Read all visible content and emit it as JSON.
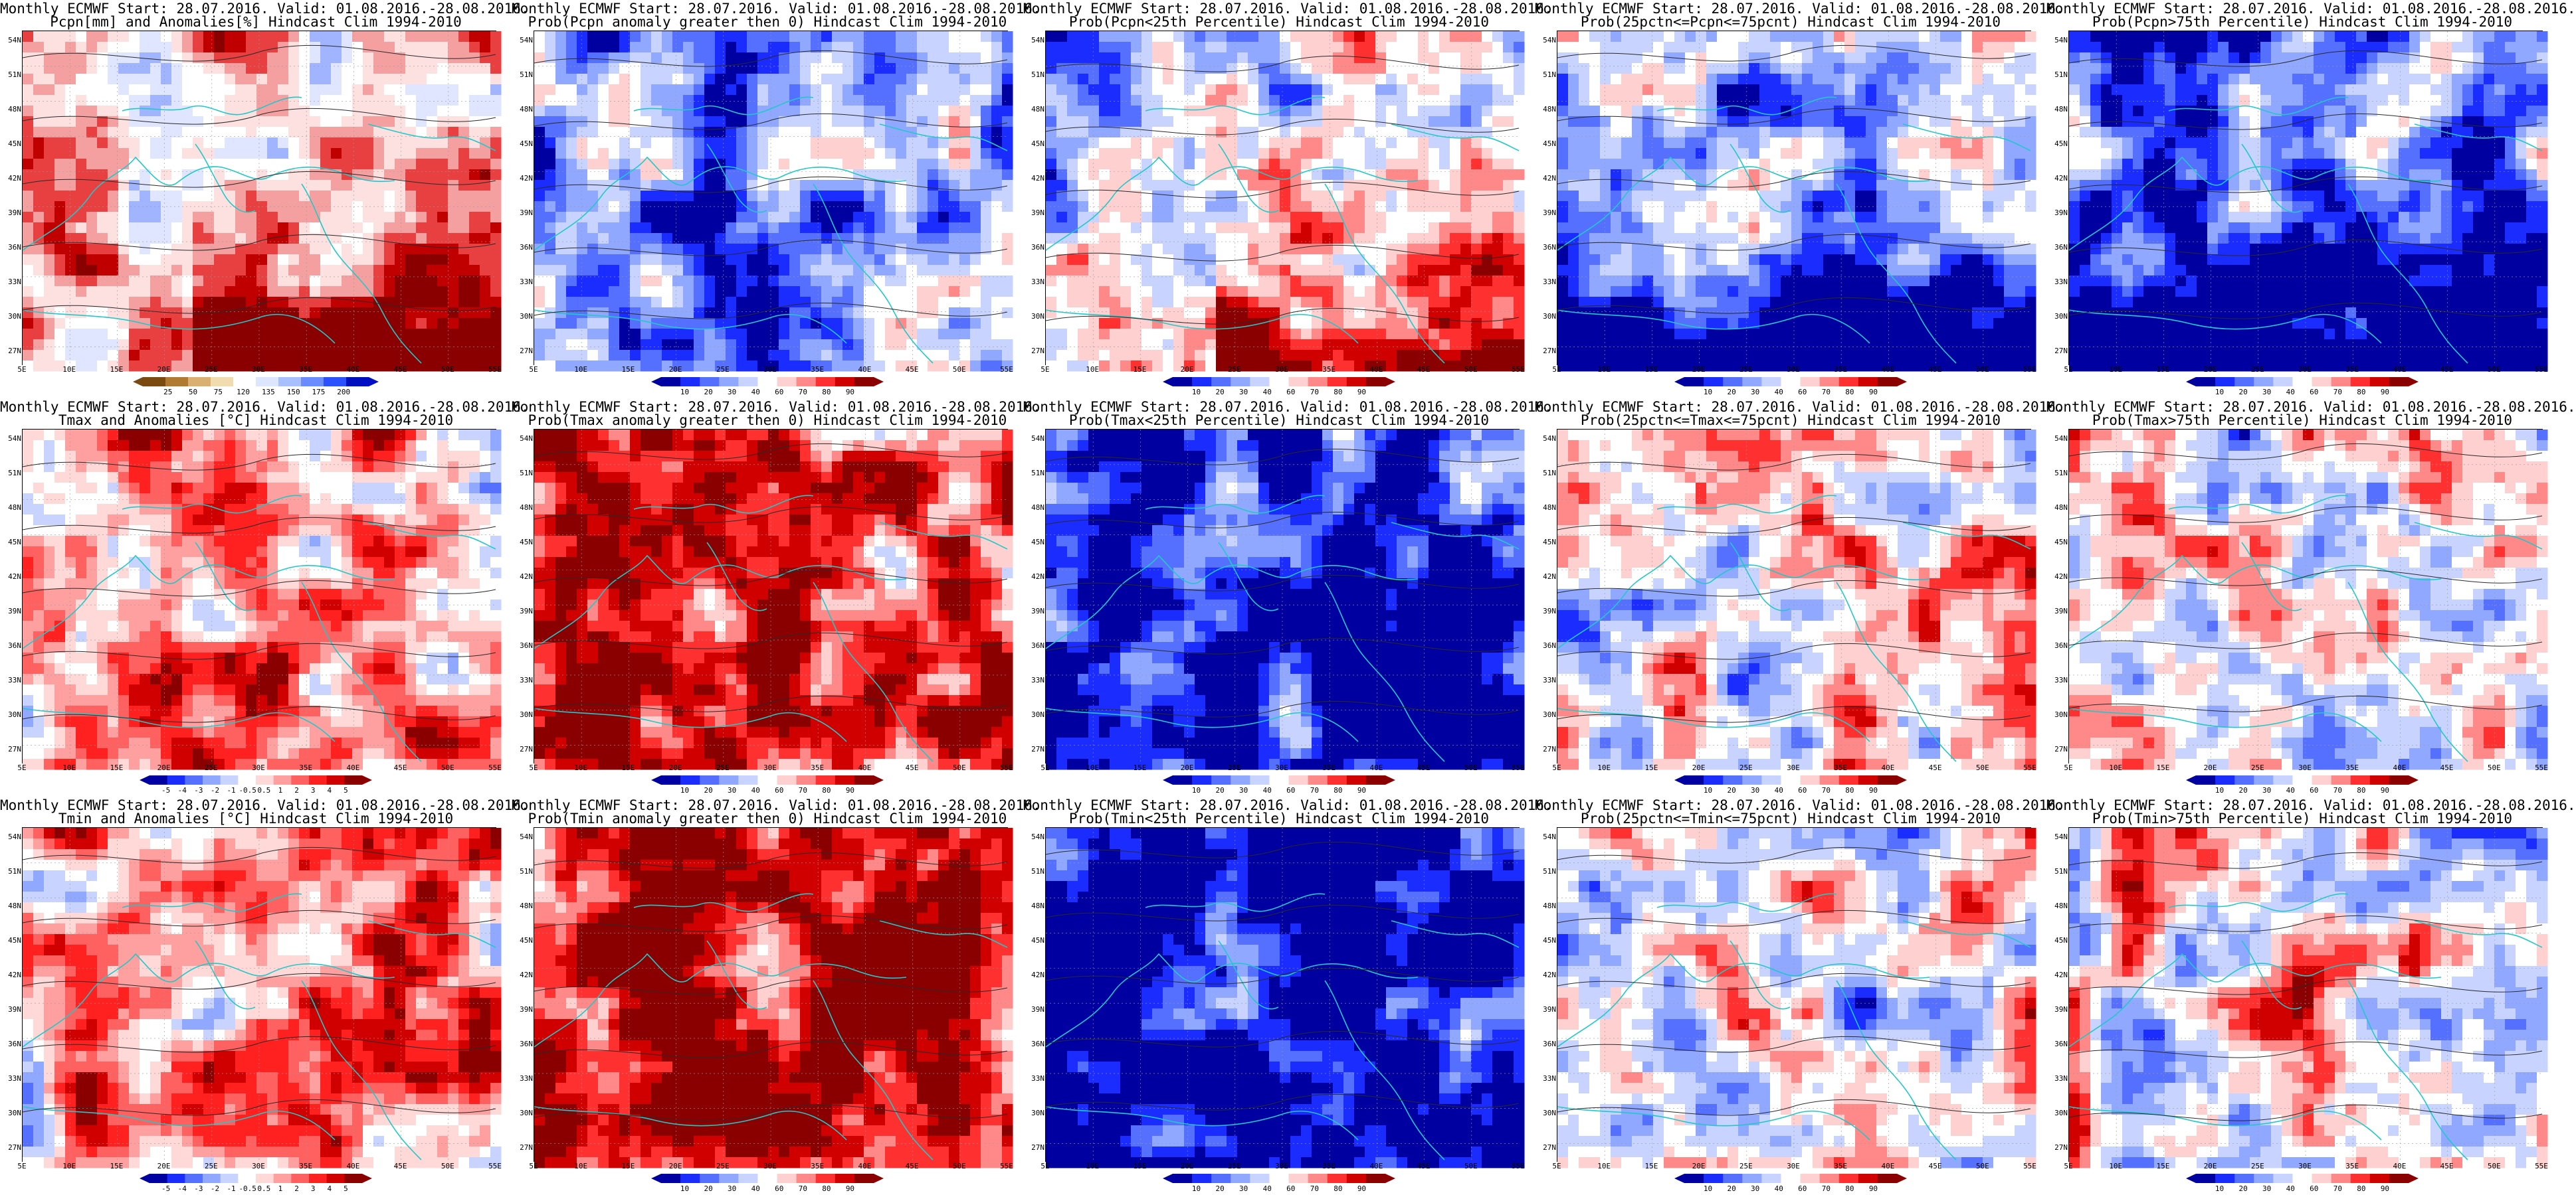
{
  "header_line": "Monthly ECMWF Start: 28.07.2016. Valid: 01.08.2016.-28.08.2016.",
  "lat_labels": [
    "54N",
    "51N",
    "48N",
    "45N",
    "42N",
    "39N",
    "36N",
    "33N",
    "30N",
    "27N"
  ],
  "lon_labels": [
    "5E",
    "10E",
    "15E",
    "20E",
    "25E",
    "30E",
    "35E",
    "40E",
    "45E",
    "50E",
    "55E"
  ],
  "colorbars": {
    "pcpn_anom": {
      "colors": [
        "#7a4a10",
        "#b07a30",
        "#d9b070",
        "#f1dcb0",
        "#ffffff",
        "#dce6ff",
        "#a8c0ff",
        "#6a8cff",
        "#2a50ff",
        "#0010c0"
      ],
      "labels": [
        "25",
        "50",
        "75",
        "120",
        "135",
        "150",
        "175",
        "200"
      ]
    },
    "temp_anom": {
      "colors": [
        "#0000a0",
        "#1a2cff",
        "#5570ff",
        "#90a8ff",
        "#c8d4ff",
        "#ffffff",
        "#ffd8d8",
        "#ffa0a0",
        "#ff6060",
        "#ff2020",
        "#d00000",
        "#8a0000"
      ],
      "labels": [
        "-5",
        "-4",
        "-3",
        "-2",
        "-1",
        "-0.5",
        "0.5",
        "1",
        "2",
        "3",
        "4",
        "5"
      ]
    },
    "prob": {
      "colors": [
        "#0000a0",
        "#1a2cff",
        "#5570ff",
        "#90a8ff",
        "#c8d4ff",
        "#ffffff",
        "#ffd0d0",
        "#ff8888",
        "#ff3030",
        "#d00000",
        "#8a0000"
      ],
      "labels": [
        "10",
        "20",
        "30",
        "40",
        "60",
        "70",
        "80",
        "90"
      ]
    }
  },
  "panels": [
    {
      "title": "Pcpn[mm] and Anomalies[%] Hindcast Clim 1994-2010",
      "cbar": "pcpn_anom",
      "scheme": "pcpn_anom",
      "bias": 0.15,
      "region": "south-red"
    },
    {
      "title": "Prob(Pcpn anomaly greater then 0) Hindcast Clim 1994-2010",
      "cbar": "prob",
      "scheme": "prob",
      "bias": -0.35,
      "region": "mixed"
    },
    {
      "title": "Prob(Pcpn<25th Percentile) Hindcast Clim 1994-2010",
      "cbar": "prob",
      "scheme": "prob",
      "bias": -0.1,
      "region": "south-red"
    },
    {
      "title": "Prob(25pctn<=Pcpn<=75pcnt) Hindcast Clim 1994-2010",
      "cbar": "prob",
      "scheme": "prob",
      "bias": -0.3,
      "region": "south-blue"
    },
    {
      "title": "Prob(Pcpn>75th Percentile) Hindcast Clim 1994-2010",
      "cbar": "prob",
      "scheme": "prob",
      "bias": -0.4,
      "region": "south-blue"
    },
    {
      "title": "Tmax and Anomalies [°C] Hindcast Clim 1994-2010",
      "cbar": "temp_anom",
      "scheme": "temp_anom",
      "bias": 0.3,
      "region": "mixed"
    },
    {
      "title": "Prob(Tmax anomaly greater then 0) Hindcast Clim 1994-2010",
      "cbar": "prob",
      "scheme": "prob",
      "bias": 0.55,
      "region": "mixed"
    },
    {
      "title": "Prob(Tmax<25th Percentile) Hindcast Clim 1994-2010",
      "cbar": "prob",
      "scheme": "prob",
      "bias": -0.85,
      "region": "mixed"
    },
    {
      "title": "Prob(25pctn<=Tmax<=75pcnt) Hindcast Clim 1994-2010",
      "cbar": "prob",
      "scheme": "prob",
      "bias": 0.05,
      "region": "mixed"
    },
    {
      "title": "Prob(Tmax>75th Percentile) Hindcast Clim 1994-2010",
      "cbar": "prob",
      "scheme": "prob",
      "bias": 0.0,
      "region": "mixed"
    },
    {
      "title": "Tmin and Anomalies [°C] Hindcast Clim 1994-2010",
      "cbar": "temp_anom",
      "scheme": "temp_anom",
      "bias": 0.25,
      "region": "mixed"
    },
    {
      "title": "Prob(Tmin anomaly greater then 0) Hindcast Clim 1994-2010",
      "cbar": "prob",
      "scheme": "prob",
      "bias": 0.75,
      "region": "mixed"
    },
    {
      "title": "Prob(Tmin<25th Percentile) Hindcast Clim 1994-2010",
      "cbar": "prob",
      "scheme": "prob",
      "bias": -0.9,
      "region": "mixed"
    },
    {
      "title": "Prob(25pctn<=Tmin<=75pcnt) Hindcast Clim 1994-2010",
      "cbar": "prob",
      "scheme": "prob",
      "bias": 0.0,
      "region": "mixed"
    },
    {
      "title": "Prob(Tmin>75th Percentile) Hindcast Clim 1994-2010",
      "cbar": "prob",
      "scheme": "prob",
      "bias": 0.05,
      "region": "mixed"
    }
  ]
}
